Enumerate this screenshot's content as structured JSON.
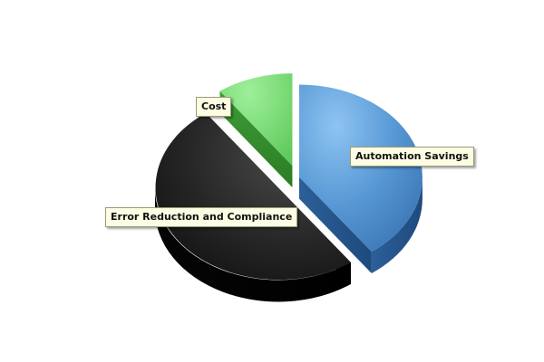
{
  "chart_data": {
    "type": "pie",
    "style": "3d-exploded",
    "title": "",
    "slices": [
      {
        "label": "Automation Savings",
        "value": 40,
        "color": "#4f8fcd"
      },
      {
        "label": "Error Reduction and Compliance",
        "value": 50,
        "color": "#1e1e1e"
      },
      {
        "label": "Cost",
        "value": 10,
        "color": "#6fd66a"
      }
    ],
    "legend": "none",
    "labels": "callout-boxes"
  }
}
